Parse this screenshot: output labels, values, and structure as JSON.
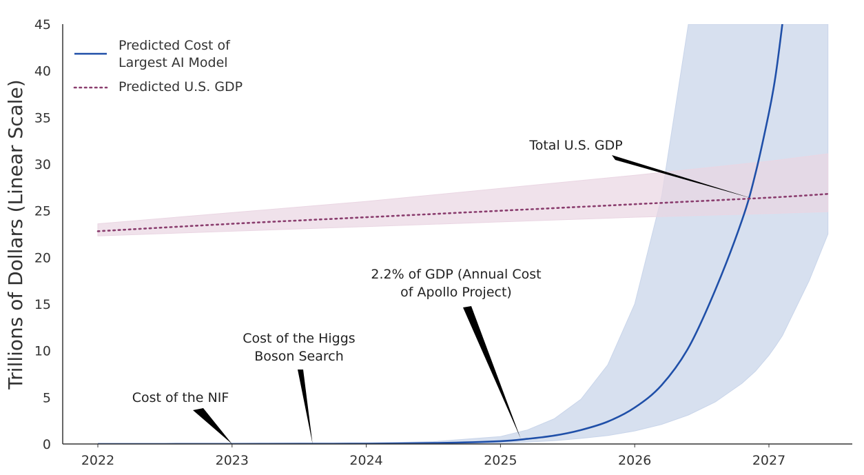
{
  "chart_data": {
    "type": "line",
    "title": "",
    "xlabel": "",
    "ylabel": "Trillions of Dollars (Linear Scale)",
    "xlim": [
      2021.78,
      2027.6
    ],
    "ylim": [
      0,
      45
    ],
    "x_ticks": [
      "2022",
      "2023",
      "2024",
      "2025",
      "2026",
      "2027"
    ],
    "y_ticks": [
      "0",
      "5",
      "10",
      "15",
      "20",
      "25",
      "30",
      "35",
      "40",
      "45"
    ],
    "grid": false,
    "legend_position": "top-left",
    "series": [
      {
        "name": "Predicted Cost of Largest AI Model",
        "style": "solid",
        "color": "#1f4fa8",
        "band_color": "#c9d5ea",
        "x": [
          2022.0,
          2022.5,
          2023.0,
          2023.5,
          2024.0,
          2024.5,
          2025.0,
          2025.2,
          2025.4,
          2025.6,
          2025.8,
          2026.0,
          2026.2,
          2026.4,
          2026.6,
          2026.8,
          2026.9,
          2027.0,
          2027.05,
          2027.1
        ],
        "values": [
          0.0,
          0.0,
          0.01,
          0.02,
          0.04,
          0.1,
          0.3,
          0.55,
          0.9,
          1.5,
          2.4,
          3.9,
          6.3,
          10.3,
          16.5,
          24.0,
          29.0,
          35.5,
          39.5,
          45.0
        ],
        "band_lower": [
          0.0,
          0.0,
          0.0,
          0.01,
          0.02,
          0.04,
          0.12,
          0.2,
          0.35,
          0.6,
          0.9,
          1.4,
          2.1,
          3.1,
          4.5,
          6.5,
          7.8,
          9.5,
          10.5,
          11.6
        ],
        "band_upper": [
          0.0,
          0.01,
          0.02,
          0.04,
          0.1,
          0.25,
          0.8,
          1.5,
          2.7,
          4.8,
          8.5,
          15.0,
          26.5,
          45.0,
          45.0,
          45.0,
          45.0,
          45.0,
          45.0,
          45.0
        ],
        "band_extension": {
          "x": [
            2027.1,
            2027.3,
            2027.44
          ],
          "upper": [
            45.0,
            45.0,
            45.0
          ],
          "lower": [
            11.6,
            17.5,
            22.5
          ]
        }
      },
      {
        "name": "Predicted U.S. GDP",
        "style": "dotted",
        "color": "#8a3d6e",
        "band_color": "#ead6e3",
        "x": [
          2022.0,
          2023.0,
          2024.0,
          2025.0,
          2026.0,
          2027.0,
          2027.44
        ],
        "values": [
          22.8,
          23.6,
          24.3,
          25.0,
          25.7,
          26.4,
          26.8
        ],
        "band_lower": [
          22.3,
          22.8,
          23.3,
          23.8,
          24.3,
          24.7,
          24.9
        ],
        "band_upper": [
          23.6,
          24.8,
          26.0,
          27.4,
          28.8,
          30.3,
          31.1
        ]
      }
    ],
    "annotations": [
      {
        "text": [
          "Cost of the NIF"
        ],
        "point": [
          2023.0,
          0.0
        ]
      },
      {
        "text": [
          "Cost of the Higgs",
          "Boson Search"
        ],
        "point": [
          2023.6,
          0.0
        ]
      },
      {
        "text": [
          "2.2% of GDP (Annual Cost",
          "of Apollo Project)"
        ],
        "point": [
          2025.15,
          0.6
        ]
      },
      {
        "text": [
          "Total U.S. GDP"
        ],
        "point": [
          2026.88,
          26.3
        ]
      }
    ],
    "legend": [
      {
        "lines": [
          "Predicted Cost of",
          "Largest AI Model"
        ],
        "style": "solid",
        "color": "#1f4fa8"
      },
      {
        "lines": [
          "Predicted U.S. GDP"
        ],
        "style": "dotted",
        "color": "#8a3d6e"
      }
    ]
  }
}
